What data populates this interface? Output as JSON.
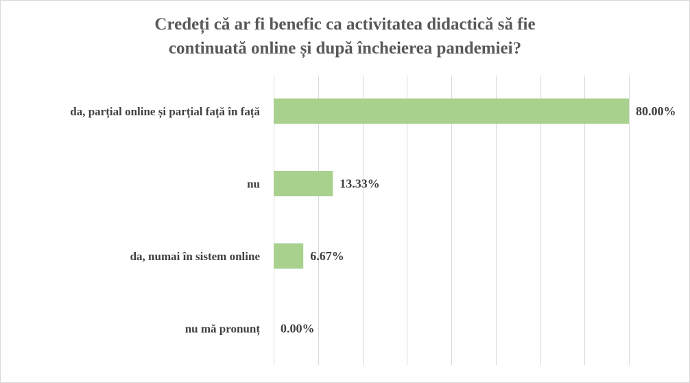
{
  "chart_data": {
    "type": "bar",
    "orientation": "horizontal",
    "title": "Credeți că ar fi benefic ca activitatea didactică să fie continuată online și după încheierea pandemiei?",
    "title_lines": [
      "Credeți că ar fi benefic ca activitatea didactică să fie",
      "continuată online și după încheierea pandemiei?"
    ],
    "categories": [
      "da, parțial online și parțial față în față",
      "nu",
      "da, numai în sistem online",
      "nu mă pronunț"
    ],
    "values": [
      80.0,
      13.33,
      6.67,
      0.0
    ],
    "data_labels": [
      "80.00%",
      "13.33%",
      "6.67%",
      "0.00%"
    ],
    "xlim": [
      0,
      80
    ],
    "grid": true,
    "legend": "none",
    "xlabel": "",
    "ylabel": "",
    "colors": {
      "bar": "#a9d18e",
      "gridline": "#d9d9d9",
      "title": "#595959",
      "text": "#404040"
    }
  }
}
